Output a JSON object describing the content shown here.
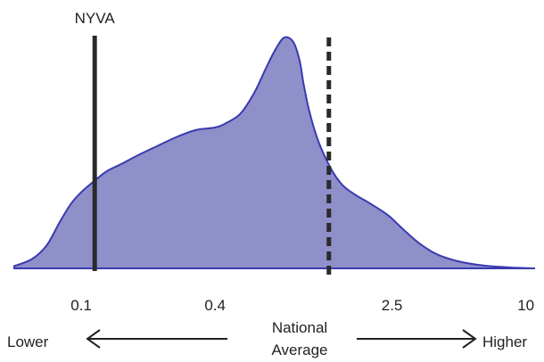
{
  "chart_data": {
    "type": "area",
    "x_scale": "log",
    "xlim": [
      0.05,
      11
    ],
    "ticks": [
      {
        "value": 0.1,
        "label": "0.1"
      },
      {
        "value": 0.4,
        "label": "0.4"
      },
      {
        "value": 2.5,
        "label": "2.5"
      },
      {
        "value": 10,
        "label": "10"
      }
    ],
    "density": {
      "x": [
        0.05,
        0.06,
        0.07,
        0.08,
        0.09,
        0.1,
        0.115,
        0.13,
        0.15,
        0.18,
        0.22,
        0.27,
        0.33,
        0.4,
        0.45,
        0.52,
        0.6,
        0.68,
        0.75,
        0.82,
        0.9,
        0.96,
        1.0,
        1.05,
        1.12,
        1.2,
        1.35,
        1.5,
        1.7,
        2.0,
        2.4,
        2.8,
        3.3,
        4.0,
        5.0,
        6.5,
        8.5,
        11
      ],
      "y": [
        0.01,
        0.04,
        0.1,
        0.2,
        0.28,
        0.33,
        0.38,
        0.42,
        0.45,
        0.49,
        0.53,
        0.57,
        0.6,
        0.61,
        0.63,
        0.67,
        0.76,
        0.87,
        0.95,
        1.0,
        0.98,
        0.9,
        0.8,
        0.7,
        0.6,
        0.52,
        0.42,
        0.36,
        0.32,
        0.28,
        0.23,
        0.17,
        0.11,
        0.06,
        0.03,
        0.012,
        0.004,
        0.0
      ]
    },
    "fill_color": "#8f8fc9",
    "line_color": "#3a3ab2",
    "markers": [
      {
        "label": "NYVA",
        "x": 0.115,
        "style": "solid"
      },
      {
        "label": "",
        "x": 1.3,
        "style": "dashed"
      }
    ],
    "bottom_labels": {
      "lower": "Lower",
      "national_line1": "National",
      "national_line2": "Average",
      "higher": "Higher"
    }
  }
}
